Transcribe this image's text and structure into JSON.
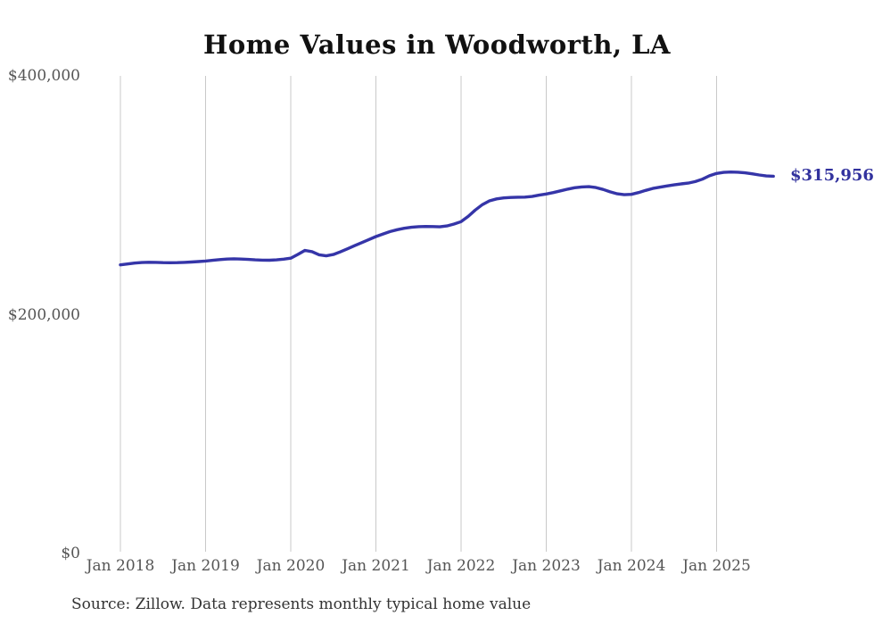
{
  "title": "Home Values in Woodworth, LA",
  "source_note": "Source: Zillow. Data represents monthly typical home value",
  "end_label": "$315,956",
  "colors": {
    "line": "#3535a8",
    "end_label_text": "#32329e",
    "grid": "#c9c9c9",
    "axis_text": "#555555",
    "title_text": "#111111",
    "source_text": "#333333",
    "background": "#ffffff"
  },
  "chart_data": {
    "type": "line",
    "title": "Home Values in Woodworth, LA",
    "xlabel": "",
    "ylabel": "",
    "ylim": [
      0,
      400000
    ],
    "grid": "vertical-only",
    "legend": "none",
    "x_ticks": [
      "Jan 2018",
      "Jan 2019",
      "Jan 2020",
      "Jan 2021",
      "Jan 2022",
      "Jan 2023",
      "Jan 2024",
      "Jan 2025"
    ],
    "y_ticks": [
      {
        "label": "$0",
        "value": 0
      },
      {
        "label": "$200,000",
        "value": 200000
      },
      {
        "label": "$400,000",
        "value": 400000
      }
    ],
    "final_value_label": "$315,956",
    "series": [
      {
        "name": "Monthly typical home value",
        "start_month": "2018-01",
        "end_month": "2025-09",
        "values": [
          241700,
          242500,
          243200,
          243700,
          243900,
          243800,
          243600,
          243500,
          243600,
          243800,
          244100,
          244500,
          244900,
          245500,
          246100,
          246600,
          246800,
          246600,
          246300,
          245900,
          245700,
          245600,
          245900,
          246500,
          247300,
          250500,
          253800,
          252800,
          250200,
          249300,
          250400,
          252600,
          255200,
          257800,
          260300,
          262900,
          265400,
          267600,
          269600,
          271200,
          272400,
          273200,
          273700,
          273900,
          273800,
          273600,
          274300,
          275900,
          277900,
          282300,
          287600,
          292200,
          295300,
          297000,
          297800,
          298200,
          298400,
          298500,
          299000,
          300100,
          301100,
          302300,
          303700,
          305100,
          306300,
          307000,
          307200,
          306500,
          304900,
          302900,
          301200,
          300500,
          300800,
          302300,
          304100,
          305700,
          306800,
          307800,
          308700,
          309500,
          310200,
          311500,
          313500,
          316300,
          318300,
          319200,
          319500,
          319300,
          318800,
          318000,
          317000,
          316200,
          315956
        ]
      }
    ]
  }
}
